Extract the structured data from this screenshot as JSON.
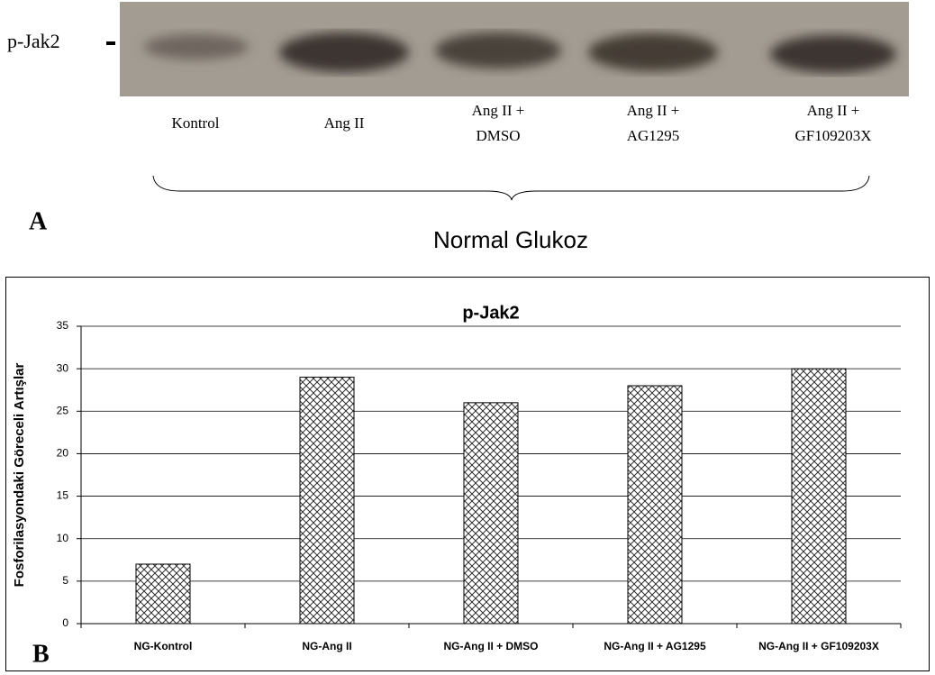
{
  "panel_a": {
    "label": "A",
    "band_label": "p-Jak2",
    "lanes": [
      [
        "Kontrol"
      ],
      [
        "Ang II"
      ],
      [
        "Ang II +",
        "DMSO"
      ],
      [
        "Ang II +",
        "AG1295"
      ],
      [
        "Ang II +",
        "GF109203X"
      ]
    ],
    "group_label": "Normal Glukoz"
  },
  "panel_b_label": "B",
  "chart_data": {
    "type": "bar",
    "title": "p-Jak2",
    "y_label": "Fosforilasyondaki Göreceli Artışlar",
    "categories": [
      "NG-Kontrol",
      "NG-Ang II",
      "NG-Ang II + DMSO",
      "NG-Ang II + AG1295",
      "NG-Ang II + GF109203X"
    ],
    "values": [
      7,
      29,
      26,
      28,
      30
    ],
    "ylim": [
      0,
      35
    ],
    "yticks": [
      0,
      5,
      10,
      15,
      20,
      25,
      30,
      35
    ],
    "grid": true
  }
}
